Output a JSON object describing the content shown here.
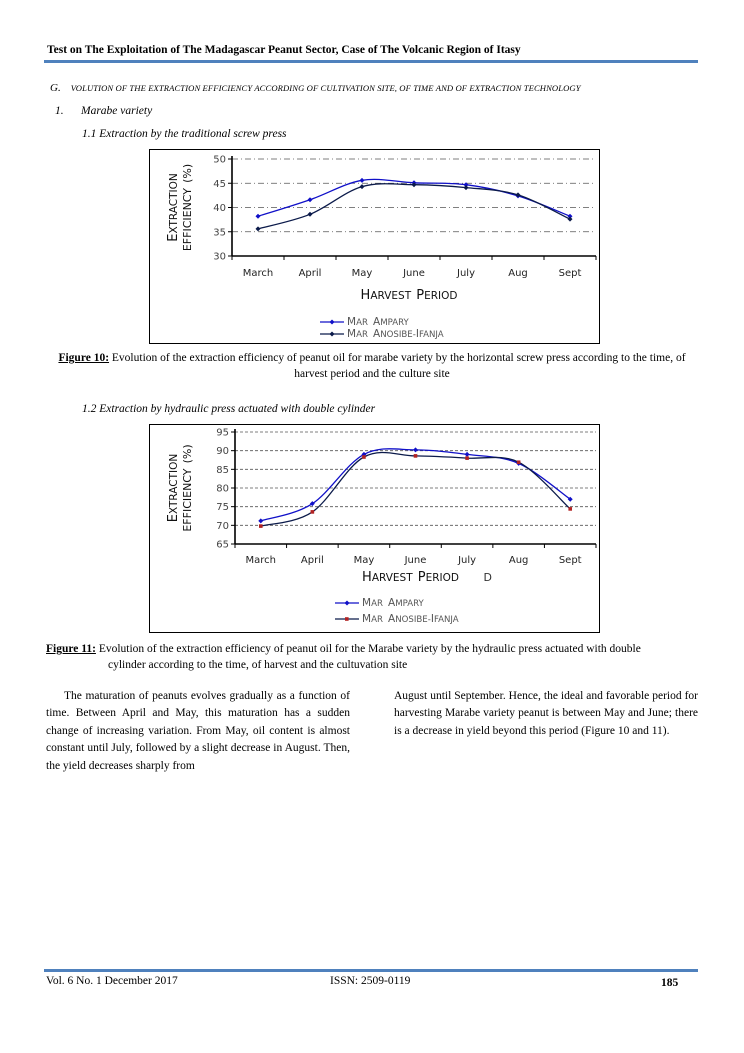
{
  "header": {
    "running_title": "Test on The Exploitation of The Madagascar Peanut Sector, Case of The Volcanic Region of Itasy"
  },
  "section": {
    "number": "G.",
    "title": "VOLUTION OF THE EXTRACTION EFFICIENCY ACCORDING OF CULTIVATION SITE, OF TIME AND OF EXTRACTION TECHNOLOGY"
  },
  "item": {
    "number": "1.",
    "title": "Marabe variety"
  },
  "subsections": [
    {
      "label": "1.1  Extraction by the traditional screw press"
    },
    {
      "label": "1.2  Extraction by hydraulic press actuated with double cylinder"
    }
  ],
  "chart_data": [
    {
      "type": "line",
      "categories": [
        "March",
        "April",
        "May",
        "June",
        "July",
        "Aug",
        "Sept"
      ],
      "series": [
        {
          "name": "MAR Ampary",
          "color": "#1010c8",
          "values": [
            38.2,
            41.6,
            45.6,
            45.1,
            44.7,
            42.4,
            38.2
          ]
        },
        {
          "name": "MAR Anosibe-Ifanja",
          "color": "#0b1a4a",
          "values": [
            35.6,
            38.6,
            44.3,
            44.7,
            44.1,
            42.6,
            37.6
          ]
        }
      ],
      "xlabel": "Harvest period",
      "ylabel": "Extraction efficiency (%)",
      "yticks": [
        30,
        35,
        40,
        45,
        50
      ],
      "ylim": [
        30,
        50
      ],
      "grid": "horizontal dash-dot",
      "legend": "bottom-center"
    },
    {
      "type": "line",
      "categories": [
        "March",
        "April",
        "May",
        "June",
        "July",
        "Aug",
        "Sept"
      ],
      "series": [
        {
          "name": "MAR Ampary",
          "color": "#1010c8",
          "values": [
            71.2,
            75.8,
            89.0,
            90.2,
            89.0,
            86.6,
            77.0
          ]
        },
        {
          "name": "MAR  Anosibe-Ifanja",
          "color": "#0b1a4a",
          "values": [
            69.8,
            73.6,
            88.3,
            88.6,
            88.0,
            86.9,
            74.4
          ]
        }
      ],
      "xlabel": "Harvest period",
      "ylabel": "Extraction efficiency (%)",
      "yticks": [
        65,
        70,
        75,
        80,
        85,
        90,
        95
      ],
      "ylim": [
        65,
        95
      ],
      "grid": "horizontal dashed",
      "legend": "bottom-center"
    }
  ],
  "figures": {
    "fig10": {
      "label": "Figure 10:",
      "caption": "Evolution of the extraction efficiency of peanut oil for marabe variety by the horizontal screw press according to the time, of harvest period and the culture site"
    },
    "fig11": {
      "label": "Figure 11:",
      "caption_line1": "Evolution of the extraction efficiency of peanut oil for the Marabe variety by the hydraulic press actuated with double",
      "caption_line2": "cylinder according to the time, of harvest and the cultuvation site",
      "stray_text": "D"
    }
  },
  "body": {
    "left_paragraph": "The maturation of peanuts evolves gradually as a function of time. Between April and May, this maturation has a sudden change of increasing variation. From May, oil content is almost constant until July, followed by a slight decrease in August. Then, the yield decreases sharply from",
    "right_paragraph": "August until September. Hence, the ideal and favorable period for harvesting Marabe variety peanut is between May and June; there is a decrease in yield beyond this period (Figure 10 and 11)."
  },
  "footer": {
    "volume": "Vol. 6 No. 1 December 2017",
    "issn": "ISSN: 2509-0119",
    "page": "185"
  }
}
